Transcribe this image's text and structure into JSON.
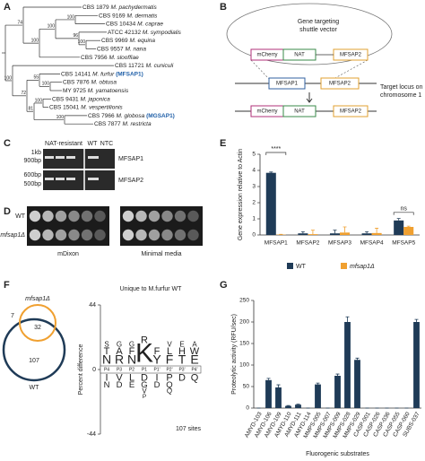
{
  "panel_labels": [
    "A",
    "B",
    "C",
    "D",
    "E",
    "F",
    "G"
  ],
  "tree": {
    "taxa": [
      {
        "strain": "CBS 1879",
        "species": "M. pachydermatis"
      },
      {
        "strain": "CBS 9169",
        "species": "M. dermatis"
      },
      {
        "strain": "CBS 10434",
        "species": "M. caprae"
      },
      {
        "strain": "ATCC 42132",
        "species": "M. sympodialis"
      },
      {
        "strain": "CBS 9969",
        "species": "M. equina"
      },
      {
        "strain": "CBS 9557",
        "species": "M. nana"
      },
      {
        "strain": "CBS 7956",
        "species": "M. slooffiae"
      },
      {
        "strain": "CBS 11721",
        "species": "M. cuniculi"
      },
      {
        "strain": "CBS 14141",
        "species": "M. furfur",
        "protein": "(MFSAP1)"
      },
      {
        "strain": "CBS 7876",
        "species": "M. obtusa"
      },
      {
        "strain": "MY 9725",
        "species": "M. yamatoensis"
      },
      {
        "strain": "CBS 9431",
        "species": "M. japonica"
      },
      {
        "strain": "CBS 15041",
        "species": "M. vespertilionis"
      },
      {
        "strain": "CBS 7966",
        "species": "M. globosa",
        "protein": "(MGSAP1)"
      },
      {
        "strain": "CBS 7877",
        "species": "M. restricta"
      }
    ],
    "support": [
      74,
      100,
      100,
      100,
      96,
      100,
      100,
      72,
      55,
      100,
      81,
      100,
      100
    ]
  },
  "construct": {
    "vector_label": [
      "Gene targeting",
      "shuttle vector"
    ],
    "vector_parts": [
      "mCherry",
      "NAT",
      "MFSAP2"
    ],
    "locus_parts": [
      "MFSAP1",
      "MFSAP2"
    ],
    "locus_label": [
      "Target locus on",
      "chromosome 1"
    ],
    "result_parts": [
      "mCherry",
      "NAT",
      "MFSAP2"
    ]
  },
  "gel": {
    "group_label": "NAT-resistant",
    "lanes": [
      "WT",
      "NTC"
    ],
    "markers": [
      "1kb",
      "900bp",
      "600bp",
      "500bp"
    ],
    "genes": [
      "MFSAP1",
      "MFSAP2"
    ]
  },
  "growth": {
    "strains": [
      "WT",
      "mfsap1Δ"
    ],
    "media": [
      "mDixon",
      "Minimal media"
    ]
  },
  "venn": {
    "sets": [
      "mfsap1Δ",
      "WT"
    ],
    "counts": [
      7,
      32,
      107
    ]
  },
  "logo": {
    "title": "Unique to M.furfur WT",
    "y_label": "Percent difference",
    "ylim": [
      -44,
      44
    ],
    "yticks": [
      44,
      0,
      -44
    ],
    "positions": [
      "P4",
      "P3",
      "P2",
      "P1",
      "P1'",
      "P2'",
      "P3'",
      "P4'"
    ],
    "columns": [
      {
        "up": [
          "N",
          "T",
          "S"
        ],
        "down": [
          "I",
          "N"
        ]
      },
      {
        "up": [
          "R",
          "A",
          "G"
        ],
        "down": [
          "V",
          "D"
        ]
      },
      {
        "up": [
          "N",
          "F",
          "G"
        ],
        "down": [
          "L",
          "E"
        ]
      },
      {
        "up": [
          "K",
          "R"
        ],
        "down": [
          "D",
          "G",
          "V",
          "P"
        ]
      },
      {
        "up": [
          "Y",
          "F"
        ],
        "down": [
          "I",
          "D"
        ]
      },
      {
        "up": [
          "F",
          "L",
          "V"
        ],
        "down": [
          "P",
          "Q",
          "Q"
        ]
      },
      {
        "up": [
          "T",
          "H",
          "E"
        ],
        "down": [
          "D"
        ]
      },
      {
        "up": [
          "E",
          "W",
          "A"
        ],
        "down": [
          "Q"
        ]
      }
    ],
    "sites": "107 sites"
  },
  "chart_data": [
    {
      "type": "bar",
      "y_label": "Gene expression relative to Actin",
      "categories": [
        "MFSAP1",
        "MFSAP2",
        "MFSAP3",
        "MFSAP4",
        "MFSAP5"
      ],
      "series": [
        {
          "name": "WT",
          "color": "#1f3b57",
          "values": [
            3.85,
            0.1,
            0.1,
            0.1,
            0.9
          ],
          "errors": [
            0.05,
            0.1,
            0.2,
            0.1,
            0.12
          ]
        },
        {
          "name": "mfsap1Δ",
          "color": "#f0a030",
          "values": [
            0.02,
            0.05,
            0.15,
            0.12,
            0.5
          ],
          "errors": [
            0.02,
            0.25,
            0.35,
            0.3,
            0.05
          ]
        }
      ],
      "ylim": [
        0,
        5
      ],
      "yticks": [
        0,
        1,
        2,
        3,
        4,
        5
      ],
      "annotations": [
        "****",
        "ns"
      ]
    },
    {
      "type": "bar",
      "y_label": "Proteolytic activity (RFU/sec)",
      "x_label": "Fluorogenic substrates",
      "categories": [
        "AMYD-103",
        "AMYD-106",
        "AMYD-109",
        "AMYD-110",
        "AMYD-111",
        "AMYD-114",
        "MMPS-005",
        "MMPS-007",
        "MMPS-009",
        "MMPS-028",
        "MMPS-029",
        "CASP-001",
        "CASP-026",
        "CASP-036",
        "CASP-055",
        "CASP-060",
        "SUBS-037"
      ],
      "values": [
        0,
        65,
        48,
        5,
        8,
        0,
        55,
        0,
        75,
        200,
        112,
        0,
        0,
        0,
        0,
        0,
        200
      ],
      "errors": [
        0,
        4,
        6,
        1,
        1,
        0,
        3,
        0,
        4,
        12,
        4,
        0,
        0,
        0,
        0,
        0,
        6
      ],
      "color": "#1f3b57",
      "ylim": [
        0,
        250
      ],
      "yticks": [
        0,
        50,
        100,
        150,
        200,
        250
      ]
    }
  ]
}
